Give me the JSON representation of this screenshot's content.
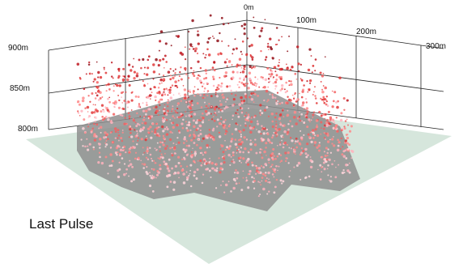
{
  "chart_data": {
    "type": "scatter",
    "projection": "3d",
    "title": "",
    "caption": "Last Pulse",
    "ground_color": "#d6e6dc",
    "shadow_color": "#8e8e8e",
    "point_colors": [
      "#ffd6dc",
      "#ffb3bd",
      "#ff8a8a",
      "#f26060",
      "#e03838",
      "#c01a22",
      "#8f0f17"
    ],
    "z_axis": {
      "ticks": [
        "800m",
        "850m",
        "900m"
      ],
      "values": [
        800,
        850,
        900
      ]
    },
    "x_axis": {
      "ticks": [
        "0m",
        "100m",
        "200m",
        "300m"
      ],
      "values": [
        0,
        100,
        200,
        300
      ]
    },
    "grid": true,
    "point_cloud": {
      "description_of_layers": "canopy returns, darker red with height",
      "elevation_range": [
        795,
        905
      ]
    }
  }
}
